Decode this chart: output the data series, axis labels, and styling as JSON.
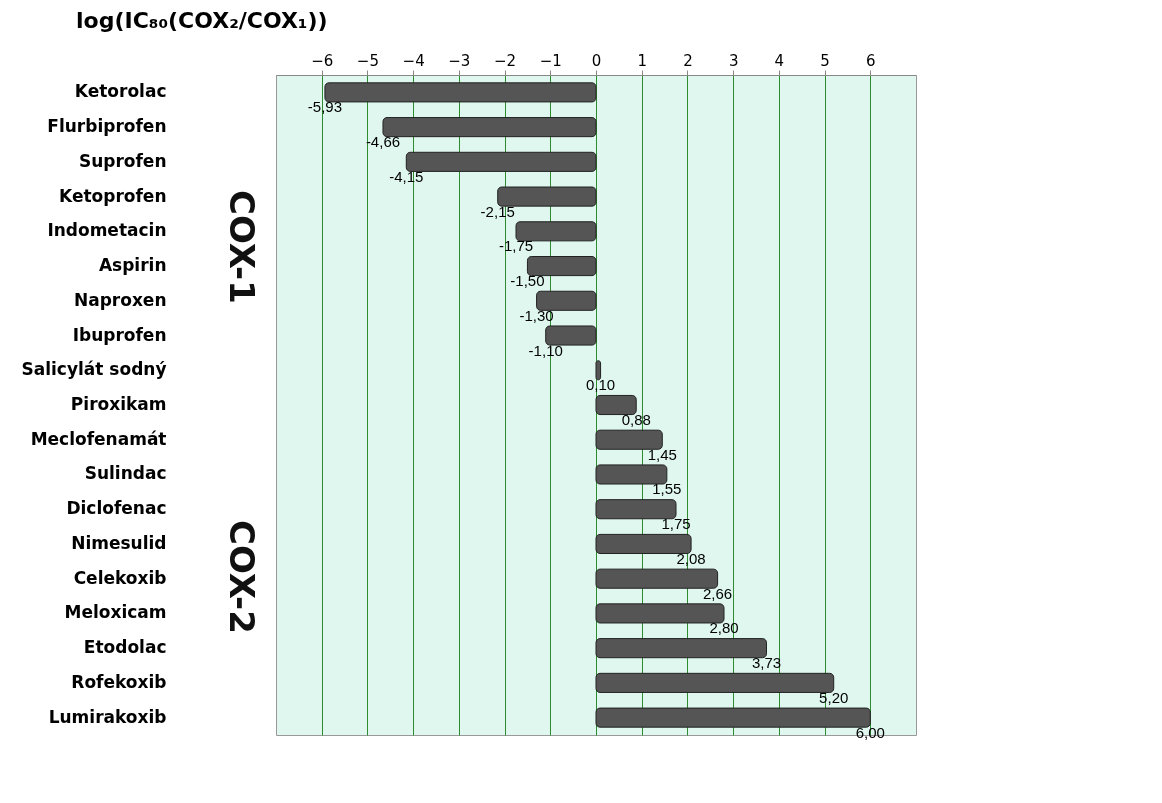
{
  "chart_data": {
    "type": "bar",
    "orientation": "horizontal",
    "title": "log(IC₈₀(COX₂/COX₁))",
    "categories": [
      "Ketorolac",
      "Flurbiprofen",
      "Suprofen",
      "Ketoprofen",
      "Indometacin",
      "Aspirin",
      "Naproxen",
      "Ibuprofen",
      "Salicylát sodný",
      "Piroxikam",
      "Meclofenamát",
      "Sulindac",
      "Diclofenac",
      "Nimesulid",
      "Celekoxib",
      "Meloxicam",
      "Etodolac",
      "Rofekoxib",
      "Lumirakoxib"
    ],
    "values": [
      -5.93,
      -4.66,
      -4.15,
      -2.15,
      -1.75,
      -1.5,
      -1.3,
      -1.1,
      0.1,
      0.88,
      1.45,
      1.55,
      1.75,
      2.08,
      2.66,
      2.8,
      3.73,
      5.2,
      6.0
    ],
    "value_labels": [
      "-5,93",
      "-4,66",
      "-4,15",
      "-2,15",
      "-1,75",
      "-1,50",
      "-1,30",
      "-1,10",
      "0,10",
      "0,88",
      "1,45",
      "1,55",
      "1,75",
      "2,08",
      "2,66",
      "2,80",
      "3,73",
      "5,20",
      "6,00"
    ],
    "color": "#555555",
    "xlim": [
      -7,
      7
    ],
    "xticks": [
      -6,
      -5,
      -4,
      -3,
      -2,
      -1,
      0,
      1,
      2,
      3,
      4,
      5,
      6
    ],
    "grid": "x",
    "annotations": [
      "COX-1",
      "COX-2"
    ]
  }
}
